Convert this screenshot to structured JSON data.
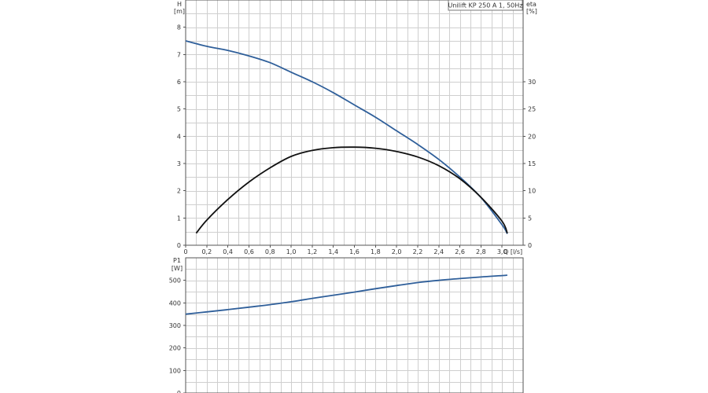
{
  "colors": {
    "head": "#2f5f9a",
    "eta": "#111111",
    "power": "#2f5f9a",
    "grid": "#cfcfcf",
    "frame": "#555555"
  },
  "chart_data": [
    {
      "type": "line",
      "title": "Unilift KP 250 A 1, 50Hz",
      "xlabel": "Q [l/s]",
      "x_ticks": [
        "0",
        "0,2",
        "0,4",
        "0,6",
        "0,8",
        "1,0",
        "1,2",
        "1,4",
        "1,6",
        "1,8",
        "2,0",
        "2,2",
        "2,4",
        "2,6",
        "2,8",
        "3,0"
      ],
      "xlim": [
        0,
        3.2
      ],
      "ylabel_left": [
        "H",
        "[m]"
      ],
      "ylabel_right": [
        "eta",
        "[%]"
      ],
      "ylim_left": [
        0,
        9
      ],
      "ylim_right": [
        0,
        45
      ],
      "y_ticks_left": [
        "0",
        "1",
        "2",
        "3",
        "4",
        "5",
        "6",
        "7",
        "8"
      ],
      "y_ticks_right": [
        "0",
        "5",
        "10",
        "15",
        "20",
        "25",
        "30"
      ],
      "grid": true,
      "series": [
        {
          "name": "H",
          "axis": "left",
          "x": [
            0,
            0.2,
            0.4,
            0.6,
            0.8,
            1.0,
            1.2,
            1.4,
            1.6,
            1.8,
            2.0,
            2.2,
            2.4,
            2.6,
            2.8,
            3.0,
            3.05
          ],
          "y": [
            7.5,
            7.3,
            7.15,
            6.95,
            6.7,
            6.35,
            6.0,
            5.6,
            5.15,
            4.7,
            4.2,
            3.7,
            3.15,
            2.5,
            1.75,
            0.75,
            0.42
          ]
        },
        {
          "name": "eta",
          "axis": "right",
          "x": [
            0.1,
            0.2,
            0.4,
            0.6,
            0.8,
            1.0,
            1.2,
            1.4,
            1.6,
            1.8,
            2.0,
            2.2,
            2.4,
            2.6,
            2.8,
            3.0,
            3.05
          ],
          "y": [
            2.2,
            4.6,
            8.4,
            11.6,
            14.2,
            16.3,
            17.4,
            17.9,
            18.0,
            17.8,
            17.2,
            16.2,
            14.6,
            12.2,
            8.8,
            4.4,
            2.2
          ]
        }
      ]
    },
    {
      "type": "line",
      "ylabel": [
        "P1",
        "[W]"
      ],
      "xlim": [
        0,
        3.2
      ],
      "ylim": [
        0,
        600
      ],
      "y_ticks": [
        "0",
        "100",
        "200",
        "300",
        "400",
        "500"
      ],
      "grid": true,
      "series": [
        {
          "name": "P1",
          "x": [
            0,
            0.2,
            0.4,
            0.6,
            0.8,
            1.0,
            1.2,
            1.4,
            1.6,
            1.8,
            2.0,
            2.2,
            2.4,
            2.6,
            2.8,
            3.0,
            3.05
          ],
          "y": [
            350,
            360,
            370,
            381,
            392,
            405,
            420,
            434,
            448,
            463,
            477,
            490,
            500,
            508,
            515,
            521,
            523
          ]
        }
      ]
    }
  ]
}
